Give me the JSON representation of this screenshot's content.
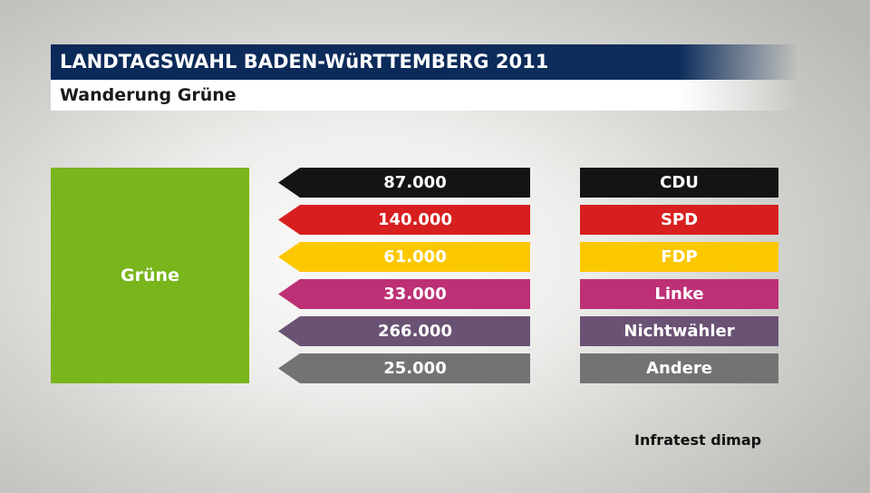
{
  "header": {
    "title": "LANDTAGSWAHL BADEN-WüRTTEMBERG 2011",
    "subtitle": "Wanderung Grüne"
  },
  "colors": {
    "title_bg": "#0d2c5b",
    "source": "#7ab51d"
  },
  "chart_data": {
    "type": "flow",
    "source": {
      "label": "Grüne",
      "color": "#7ab51d"
    },
    "flows": [
      {
        "party": "CDU",
        "value": "87.000",
        "color": "#141414"
      },
      {
        "party": "SPD",
        "value": "140.000",
        "color": "#d81f1f"
      },
      {
        "party": "FDP",
        "value": "61.000",
        "color": "#fbc800"
      },
      {
        "party": "Linke",
        "value": "33.000",
        "color": "#bd3075"
      },
      {
        "party": "Nichtwähler",
        "value": "266.000",
        "color": "#6a5274"
      },
      {
        "party": "Andere",
        "value": "25.000",
        "color": "#737373"
      }
    ]
  },
  "footer": {
    "credit": "Infratest dimap"
  }
}
